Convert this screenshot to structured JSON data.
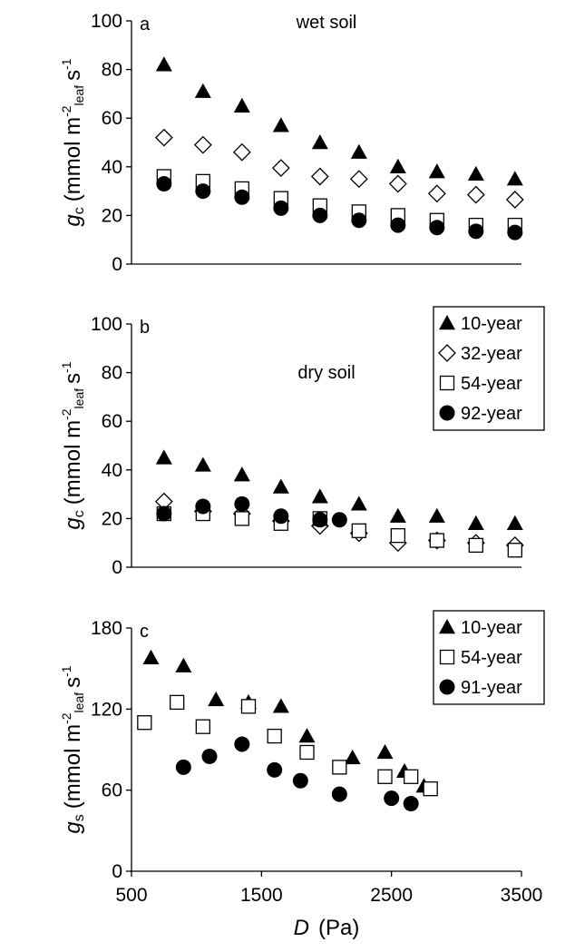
{
  "chart_data": [
    {
      "type": "scatter",
      "panel_label": "a",
      "annotation": "wet soil",
      "ylabel": {
        "symbol": "g",
        "symbol_sub": "c",
        "unit": "(mmol m",
        "exp1": "-2",
        "unit_sub": "leaf",
        "unit2": "s",
        "exp2": "-1"
      },
      "xlim": [
        500,
        3500
      ],
      "ylim": [
        0,
        100
      ],
      "yticks": [
        0,
        20,
        40,
        60,
        80,
        100
      ],
      "legend": false,
      "series": [
        {
          "marker": "triangle",
          "color": "#000000",
          "x": [
            750,
            1050,
            1350,
            1650,
            1950,
            2250,
            2550,
            2850,
            3150,
            3450
          ],
          "values": [
            82,
            71,
            65,
            57,
            50,
            46,
            40,
            38,
            37,
            35
          ]
        },
        {
          "marker": "diamond",
          "color": "#000000",
          "x": [
            750,
            1050,
            1350,
            1650,
            1950,
            2250,
            2550,
            2850,
            3150,
            3450
          ],
          "values": [
            52,
            49,
            46,
            39.5,
            36,
            35,
            33,
            29,
            28.5,
            26.5
          ]
        },
        {
          "marker": "square",
          "color": "#000000",
          "x": [
            750,
            1050,
            1350,
            1650,
            1950,
            2250,
            2550,
            2850,
            3150,
            3450
          ],
          "values": [
            36,
            34,
            31,
            27,
            24,
            21.5,
            20,
            18,
            16,
            16
          ]
        },
        {
          "marker": "circle",
          "color": "#000000",
          "x": [
            750,
            1050,
            1350,
            1650,
            1950,
            2250,
            2550,
            2850,
            3150,
            3450
          ],
          "values": [
            33,
            30,
            27.5,
            23,
            20,
            18,
            16,
            15,
            13.5,
            13
          ]
        }
      ]
    },
    {
      "type": "scatter",
      "panel_label": "b",
      "annotation": "dry soil",
      "ylabel": {
        "symbol": "g",
        "symbol_sub": "c",
        "unit": "(mmol m",
        "exp1": "-2",
        "unit_sub": "leaf",
        "unit2": "s",
        "exp2": "-1"
      },
      "xlim": [
        500,
        3500
      ],
      "ylim": [
        0,
        100
      ],
      "yticks": [
        0,
        20,
        40,
        60,
        80,
        100
      ],
      "legend": "upper right",
      "series": [
        {
          "name": "10-year",
          "marker": "triangle",
          "color": "#000000",
          "x": [
            750,
            1050,
            1350,
            1650,
            1950,
            2250,
            2550,
            2850,
            3150,
            3450
          ],
          "values": [
            45,
            42,
            38,
            33,
            29,
            26,
            21,
            21,
            18,
            18
          ]
        },
        {
          "name": "32-year",
          "marker": "diamond",
          "color": "#000000",
          "x": [
            750,
            1050,
            1350,
            1650,
            1950,
            2250,
            2550,
            2850,
            3150,
            3450
          ],
          "values": [
            27,
            23,
            22,
            19,
            17,
            14,
            10,
            11,
            10,
            9
          ]
        },
        {
          "name": "54-year",
          "marker": "square",
          "color": "#000000",
          "x": [
            750,
            1050,
            1350,
            1650,
            1950,
            2250,
            2550,
            2850,
            3150,
            3450
          ],
          "values": [
            22,
            22,
            20,
            18,
            20,
            15,
            13,
            11,
            9,
            7
          ]
        },
        {
          "name": "92-year",
          "marker": "circle",
          "color": "#000000",
          "x": [
            750,
            1050,
            1350,
            1650,
            1950,
            2100
          ],
          "values": [
            22,
            25,
            26,
            21,
            19.5,
            19.5
          ]
        }
      ]
    },
    {
      "type": "scatter",
      "panel_label": "c",
      "ylabel": {
        "symbol": "g",
        "symbol_sub": "s",
        "unit": "(mmol m",
        "exp1": "-2",
        "unit_sub": "leaf",
        "unit2": "s",
        "exp2": "-1"
      },
      "xlabel": {
        "symbol": "D",
        "unit": "(Pa)"
      },
      "xlim": [
        500,
        3500
      ],
      "xticks": [
        500,
        1500,
        2500,
        3500
      ],
      "ylim": [
        0,
        180
      ],
      "yticks": [
        0,
        60,
        120,
        180
      ],
      "legend": "upper right",
      "series": [
        {
          "name": "10-year",
          "marker": "triangle",
          "color": "#000000",
          "x": [
            650,
            900,
            1150,
            1400,
            1650,
            1850,
            2200,
            2450,
            2600,
            2750
          ],
          "values": [
            158,
            152,
            127,
            125,
            122,
            100,
            84,
            88,
            74,
            63
          ]
        },
        {
          "name": "54-year",
          "marker": "square",
          "color": "#000000",
          "x": [
            600,
            850,
            1050,
            1400,
            1600,
            1850,
            2100,
            2450,
            2650,
            2800
          ],
          "values": [
            110,
            125,
            107,
            122,
            100,
            88,
            77,
            70,
            70,
            61
          ]
        },
        {
          "name": "91-year",
          "marker": "circle",
          "color": "#000000",
          "x": [
            900,
            1100,
            1350,
            1600,
            1800,
            2100,
            2500,
            2650
          ],
          "values": [
            77,
            85,
            94,
            75,
            67,
            57,
            54,
            50
          ]
        }
      ]
    }
  ]
}
